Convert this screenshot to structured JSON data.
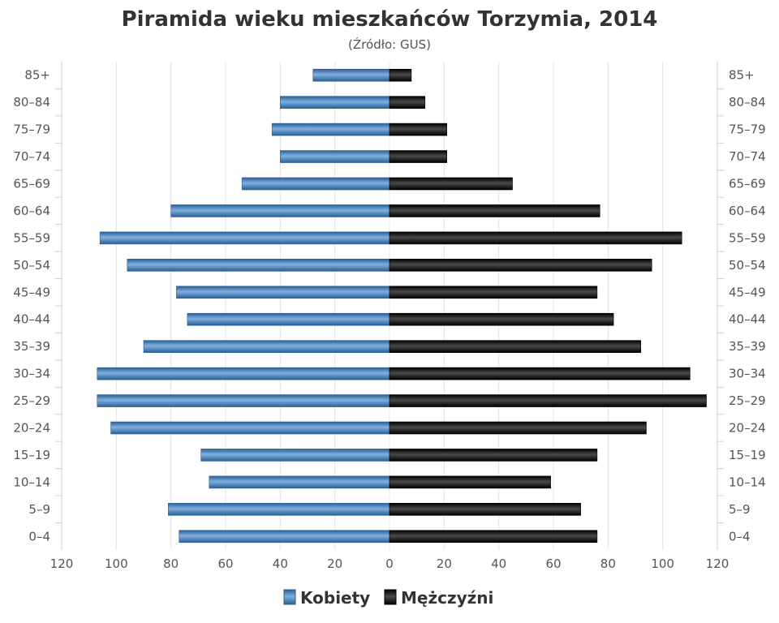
{
  "chart_data": {
    "type": "bar",
    "orientation": "horizontal",
    "layout": "population-pyramid",
    "title": "Piramida wieku mieszkańców Torzymia, 2014",
    "subtitle": "(Źródło: GUS)",
    "categories": [
      "85+",
      "80–84",
      "75–79",
      "70–74",
      "65–69",
      "60–64",
      "55–59",
      "50–54",
      "45–49",
      "40–44",
      "35–39",
      "30–34",
      "25–29",
      "20–24",
      "15–19",
      "10–14",
      "5–9",
      "0–4"
    ],
    "series": [
      {
        "name": "Kobiety",
        "side": "left",
        "color": "#3a78b8",
        "values": [
          28,
          40,
          43,
          40,
          54,
          80,
          106,
          96,
          78,
          74,
          90,
          107,
          107,
          102,
          69,
          66,
          81,
          77
        ]
      },
      {
        "name": "Mężczyźni",
        "side": "right",
        "color": "#1a1a1a",
        "values": [
          8,
          13,
          21,
          21,
          45,
          77,
          107,
          96,
          76,
          82,
          92,
          110,
          116,
          94,
          76,
          59,
          70,
          76
        ]
      }
    ],
    "xlim": [
      -120,
      120
    ],
    "xticks": [
      "120",
      "100",
      "80",
      "60",
      "40",
      "20",
      "0",
      "20",
      "40",
      "60",
      "80",
      "100",
      "120"
    ],
    "grid": true,
    "legend_position": "bottom-center"
  }
}
